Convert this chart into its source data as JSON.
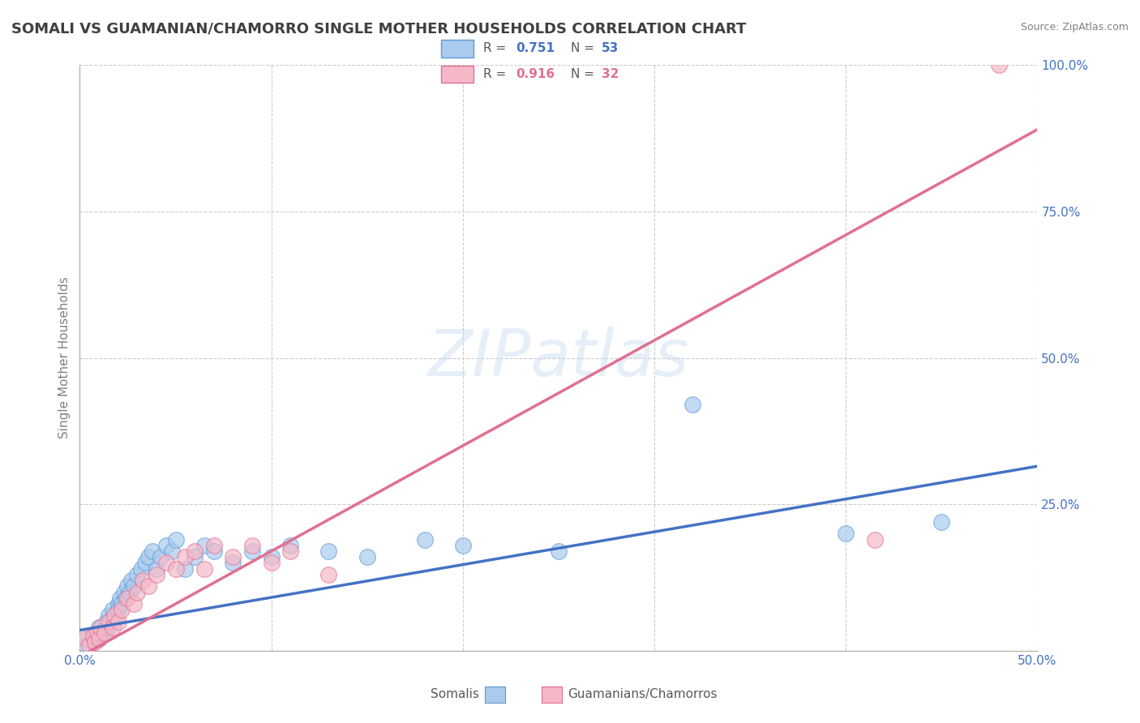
{
  "title": "SOMALI VS GUAMANIAN/CHAMORRO SINGLE MOTHER HOUSEHOLDS CORRELATION CHART",
  "source": "Source: ZipAtlas.com",
  "ylabel": "Single Mother Households",
  "xlim": [
    0,
    0.5
  ],
  "ylim": [
    0,
    1.0
  ],
  "watermark": "ZIPatlas",
  "blue_R": 0.751,
  "blue_N": 53,
  "pink_R": 0.916,
  "pink_N": 32,
  "blue_color": "#AACBEE",
  "pink_color": "#F5B8C8",
  "blue_edge_color": "#5B9BD5",
  "pink_edge_color": "#E07090",
  "blue_line_color": "#4472C4",
  "pink_line_color": "#E07090",
  "blue_label": "Somalis",
  "pink_label": "Guamanians/Chamorros",
  "blue_scatter_x": [
    0.003,
    0.005,
    0.007,
    0.008,
    0.009,
    0.01,
    0.01,
    0.011,
    0.012,
    0.013,
    0.014,
    0.015,
    0.015,
    0.016,
    0.017,
    0.018,
    0.019,
    0.02,
    0.02,
    0.021,
    0.022,
    0.023,
    0.024,
    0.025,
    0.026,
    0.027,
    0.028,
    0.03,
    0.032,
    0.034,
    0.036,
    0.038,
    0.04,
    0.042,
    0.045,
    0.048,
    0.05,
    0.055,
    0.06,
    0.065,
    0.07,
    0.08,
    0.09,
    0.1,
    0.11,
    0.13,
    0.15,
    0.18,
    0.2,
    0.25,
    0.32,
    0.4,
    0.45
  ],
  "blue_scatter_y": [
    0.01,
    0.02,
    0.015,
    0.025,
    0.03,
    0.02,
    0.04,
    0.03,
    0.035,
    0.04,
    0.05,
    0.04,
    0.06,
    0.05,
    0.07,
    0.06,
    0.055,
    0.08,
    0.07,
    0.09,
    0.08,
    0.1,
    0.09,
    0.11,
    0.1,
    0.12,
    0.11,
    0.13,
    0.14,
    0.15,
    0.16,
    0.17,
    0.14,
    0.16,
    0.18,
    0.17,
    0.19,
    0.14,
    0.16,
    0.18,
    0.17,
    0.15,
    0.17,
    0.16,
    0.18,
    0.17,
    0.16,
    0.19,
    0.18,
    0.17,
    0.42,
    0.2,
    0.22
  ],
  "pink_scatter_x": [
    0.003,
    0.005,
    0.007,
    0.008,
    0.009,
    0.01,
    0.011,
    0.013,
    0.015,
    0.017,
    0.018,
    0.02,
    0.022,
    0.025,
    0.028,
    0.03,
    0.033,
    0.036,
    0.04,
    0.045,
    0.05,
    0.055,
    0.06,
    0.065,
    0.07,
    0.08,
    0.09,
    0.1,
    0.11,
    0.13,
    0.415,
    0.48
  ],
  "pink_scatter_y": [
    0.02,
    0.01,
    0.025,
    0.015,
    0.03,
    0.02,
    0.04,
    0.03,
    0.05,
    0.04,
    0.06,
    0.05,
    0.07,
    0.09,
    0.08,
    0.1,
    0.12,
    0.11,
    0.13,
    0.15,
    0.14,
    0.16,
    0.17,
    0.14,
    0.18,
    0.16,
    0.18,
    0.15,
    0.17,
    0.13,
    0.19,
    1.0
  ],
  "blue_trend_x": [
    0.0,
    0.5
  ],
  "blue_trend_y": [
    0.035,
    0.315
  ],
  "pink_trend_x": [
    0.0,
    0.5
  ],
  "pink_trend_y": [
    -0.01,
    0.89
  ],
  "background_color": "#FFFFFF",
  "grid_color": "#CCCCCC",
  "axis_label_color": "#4472C4",
  "title_color": "#404040",
  "title_fontsize": 13,
  "label_fontsize": 11,
  "tick_fontsize": 11,
  "legend_fontsize": 11,
  "legend_text_color": "#595959",
  "legend_value_color_blue": "#4472C4",
  "legend_value_color_pink": "#E07090"
}
